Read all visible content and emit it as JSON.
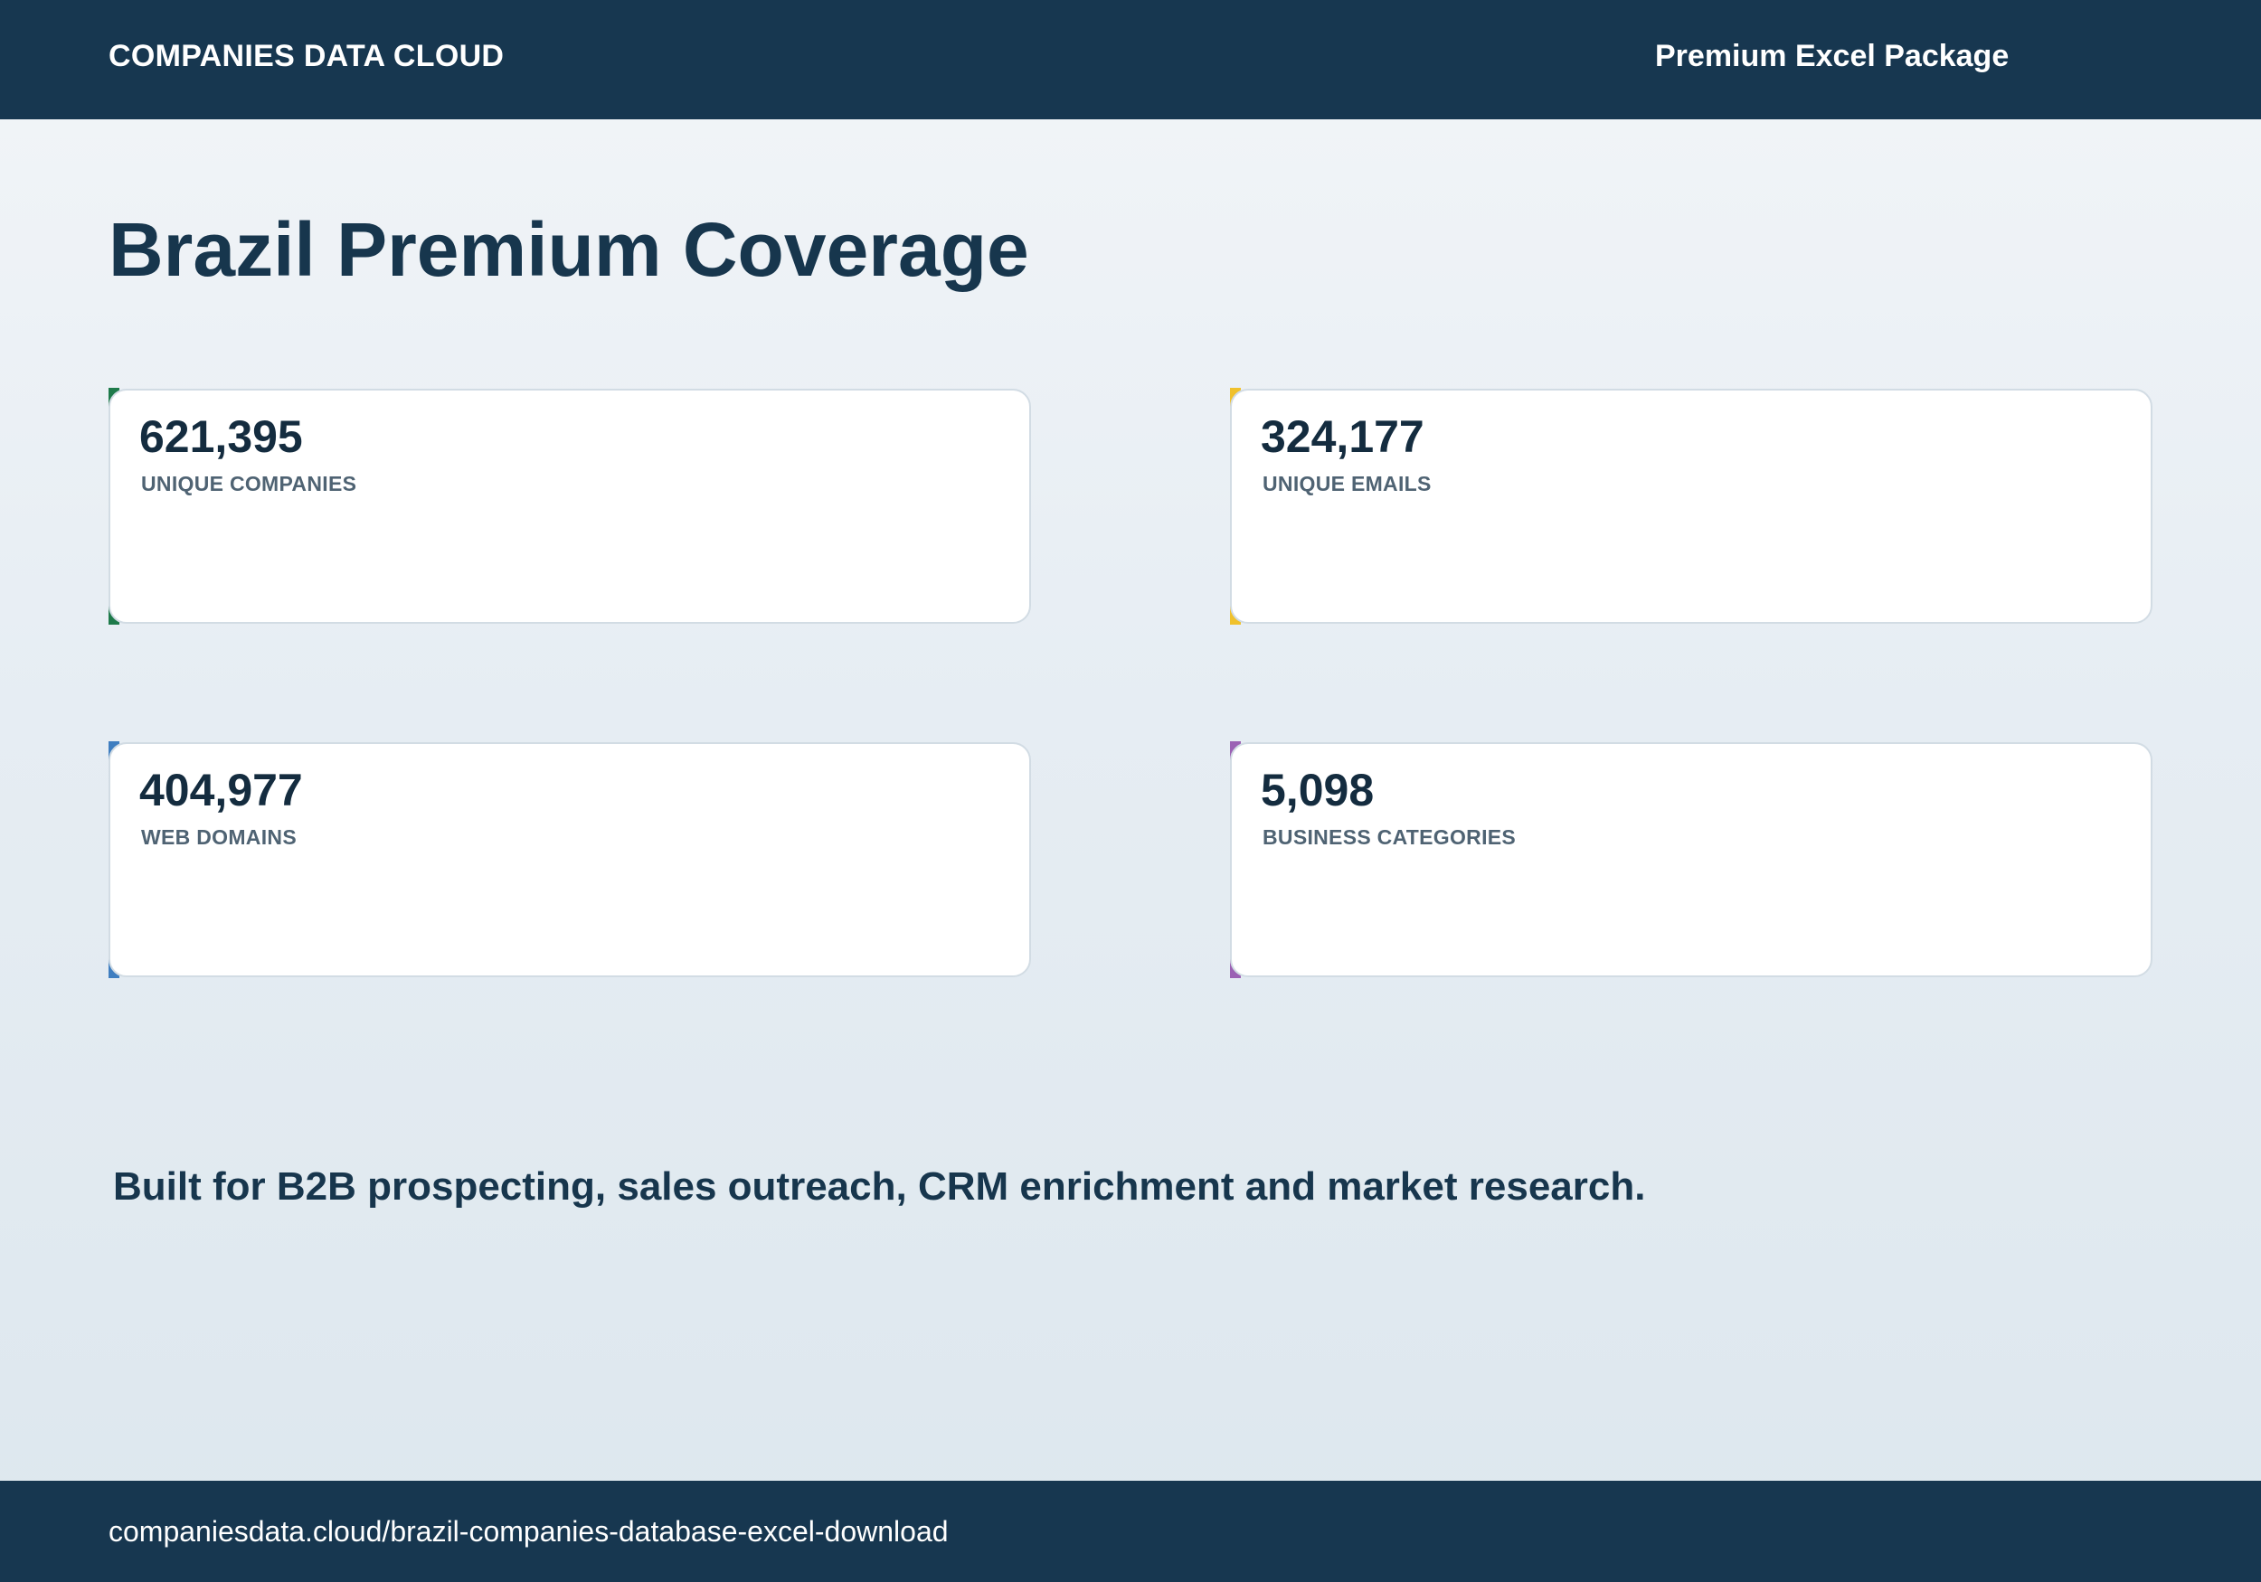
{
  "header": {
    "brand": "COMPANIES DATA CLOUD",
    "package": "Premium Excel Package"
  },
  "page": {
    "title": "Brazil Premium Coverage"
  },
  "stats": [
    {
      "value": "621,395",
      "label": "UNIQUE COMPANIES",
      "accent_color": "#1e7a4a"
    },
    {
      "value": "324,177",
      "label": "UNIQUE EMAILS",
      "accent_color": "#f0c12c"
    },
    {
      "value": "404,977",
      "label": "WEB DOMAINS",
      "accent_color": "#3f7ec0"
    },
    {
      "value": "5,098",
      "label": "BUSINESS CATEGORIES",
      "accent_color": "#9b62b4"
    }
  ],
  "tagline": "Built for B2B prospecting, sales outreach, CRM enrichment and market research.",
  "footer": {
    "url": "companiesdata.cloud/brazil-companies-database-excel-download"
  },
  "colors": {
    "navy": "#173750",
    "card_border": "#d2dce4"
  }
}
